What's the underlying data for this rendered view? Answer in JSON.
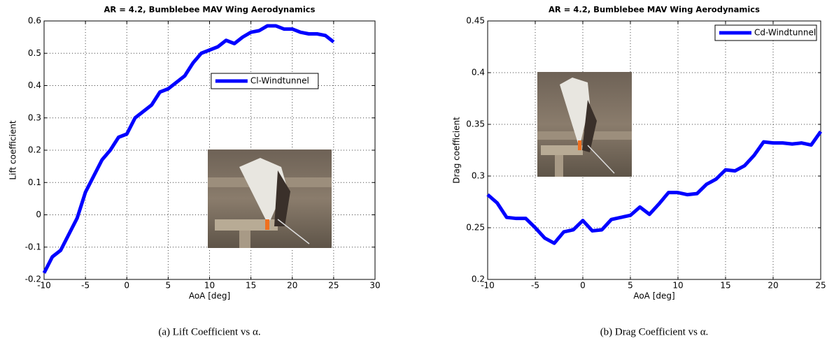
{
  "chart_data": [
    {
      "type": "line",
      "title": "AR = 4.2, Bumblebee MAV Wing Aerodynamics",
      "x_label": "AoA [deg]",
      "y_label": "Lift coefficient",
      "caption": "(a) Lift Coefficient vs α.",
      "x": [
        -10,
        -9,
        -8,
        -7,
        -6,
        -5,
        -4,
        -3,
        -2,
        -1,
        0,
        1,
        2,
        3,
        4,
        5,
        6,
        7,
        8,
        9,
        10,
        11,
        12,
        13,
        14,
        15,
        16,
        17,
        18,
        19,
        20,
        21,
        22,
        23,
        24,
        25
      ],
      "series": [
        {
          "name": "Cl-Windtunnel",
          "color": "#0000ff",
          "values": [
            -0.18,
            -0.13,
            -0.11,
            -0.06,
            -0.01,
            0.07,
            0.12,
            0.17,
            0.2,
            0.24,
            0.25,
            0.3,
            0.32,
            0.34,
            0.38,
            0.39,
            0.41,
            0.43,
            0.47,
            0.5,
            0.51,
            0.52,
            0.54,
            0.53,
            0.55,
            0.565,
            0.57,
            0.585,
            0.585,
            0.575,
            0.575,
            0.565,
            0.56,
            0.56,
            0.555,
            0.535
          ]
        }
      ],
      "xlim": [
        -10,
        30
      ],
      "xticks": [
        -10,
        -5,
        0,
        5,
        10,
        15,
        20,
        25,
        30
      ],
      "ylim": [
        -0.2,
        0.6
      ],
      "yticks": [
        -0.2,
        -0.1,
        0,
        0.1,
        0.2,
        0.3,
        0.4,
        0.5,
        0.6
      ],
      "grid": true,
      "legend_position": "upper center"
    },
    {
      "type": "line",
      "title": "AR = 4.2, Bumblebee MAV Wing Aerodynamics",
      "x_label": "AoA [deg]",
      "y_label": "Drag coefficient",
      "caption": "(b) Drag Coefficient vs α.",
      "x": [
        -10,
        -9,
        -8,
        -7,
        -6,
        -5,
        -4,
        -3,
        -2,
        -1,
        0,
        1,
        2,
        3,
        4,
        5,
        6,
        7,
        8,
        9,
        10,
        11,
        12,
        13,
        14,
        15,
        16,
        17,
        18,
        19,
        20,
        21,
        22,
        23,
        24,
        25
      ],
      "series": [
        {
          "name": "Cd-Windtunnel",
          "color": "#0000ff",
          "values": [
            0.282,
            0.274,
            0.26,
            0.259,
            0.259,
            0.25,
            0.24,
            0.235,
            0.246,
            0.248,
            0.257,
            0.247,
            0.248,
            0.258,
            0.26,
            0.262,
            0.27,
            0.263,
            0.273,
            0.284,
            0.284,
            0.282,
            0.283,
            0.292,
            0.297,
            0.306,
            0.305,
            0.31,
            0.32,
            0.333,
            0.332,
            0.332,
            0.331,
            0.332,
            0.33,
            0.343
          ]
        }
      ],
      "xlim": [
        -10,
        25
      ],
      "xticks": [
        -10,
        -5,
        0,
        5,
        10,
        15,
        20,
        25
      ],
      "ylim": [
        0.2,
        0.45
      ],
      "yticks": [
        0.2,
        0.25,
        0.3,
        0.35,
        0.4,
        0.45
      ],
      "grid": true,
      "legend_position": "upper right"
    }
  ]
}
